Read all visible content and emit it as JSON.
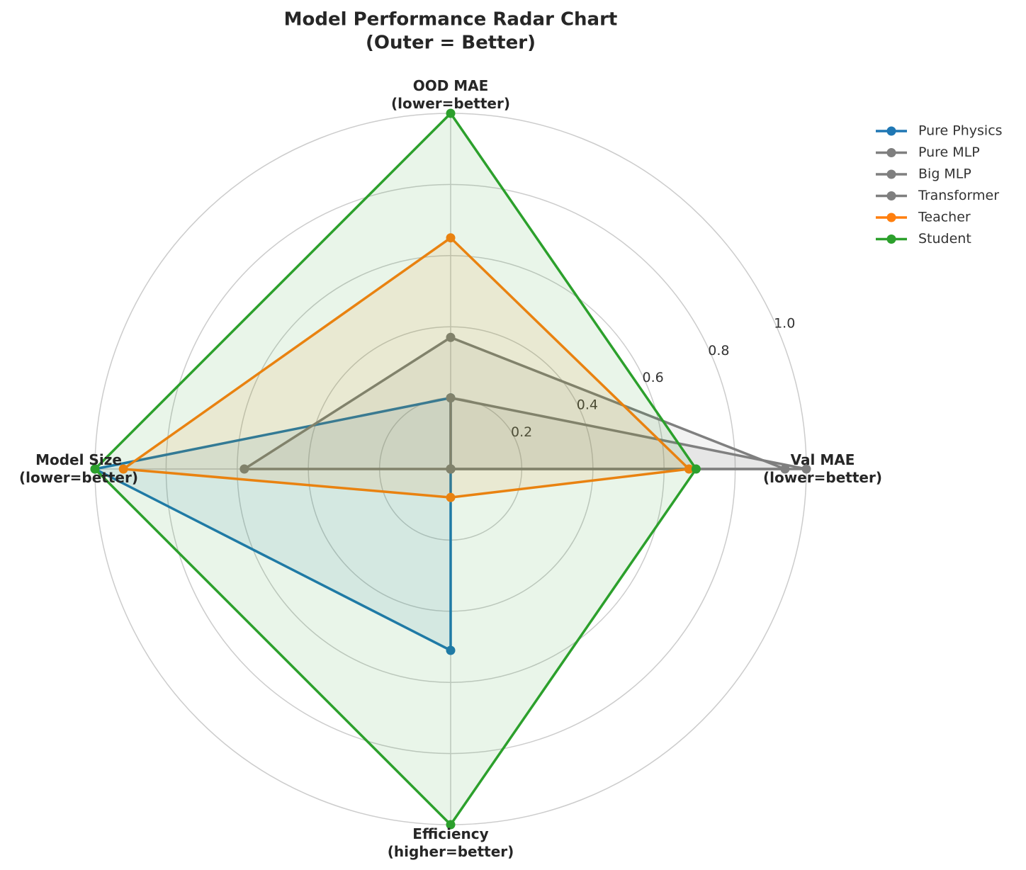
{
  "chart_data": {
    "type": "radar",
    "title": "Model Performance Radar Chart\n(Outer = Better)",
    "categories": [
      "Val MAE\n(lower=better)",
      "OOD MAE\n(lower=better)",
      "Model Size\n(lower=better)",
      "Efficiency\n(higher=better)"
    ],
    "series": [
      {
        "name": "Pure Physics",
        "color": "#1f77b4",
        "values": [
          0.0,
          0.2,
          1.0,
          0.51
        ]
      },
      {
        "name": "Pure MLP",
        "color": "#7f7f7f",
        "values": [
          1.0,
          0.2,
          0.0,
          0.0
        ]
      },
      {
        "name": "Big MLP",
        "color": "#7f7f7f",
        "values": [
          0.94,
          0.37,
          0.58,
          0.0
        ]
      },
      {
        "name": "Transformer",
        "color": "#7f7f7f",
        "values": [
          0.0,
          0.0,
          0.0,
          0.0
        ]
      },
      {
        "name": "Teacher",
        "color": "#ff7f0e",
        "values": [
          0.67,
          0.65,
          0.92,
          0.08
        ]
      },
      {
        "name": "Student",
        "color": "#2ca02c",
        "values": [
          0.69,
          1.0,
          1.0,
          1.0
        ]
      }
    ],
    "rlim": [
      0,
      1
    ],
    "rticks": [
      0.2,
      0.4,
      0.6,
      0.8,
      {
        "value": 1,
        "label": "1.0"
      }
    ],
    "grid": true,
    "legend": "upper right"
  }
}
